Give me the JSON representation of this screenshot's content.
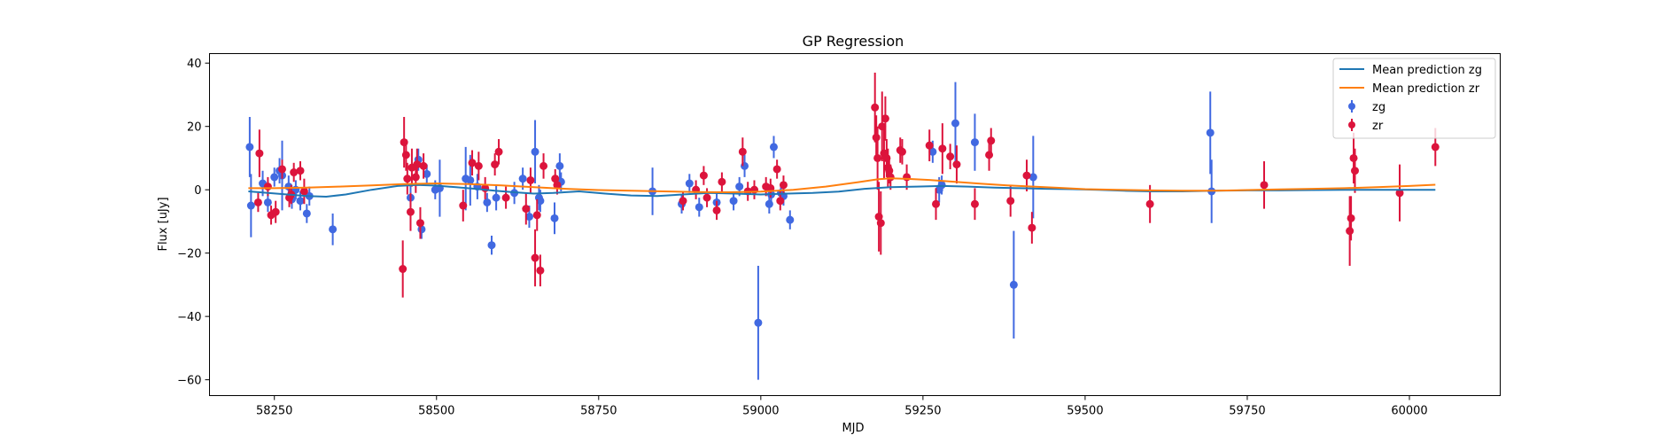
{
  "chart_data": {
    "type": "scatter",
    "title": "GP Regression",
    "xlabel": "MJD",
    "ylabel": "Flux [uJy]",
    "xlim": [
      58150,
      60140
    ],
    "ylim": [
      -65,
      43
    ],
    "xticks": [
      58250,
      58500,
      58750,
      59000,
      59250,
      59500,
      59750,
      60000
    ],
    "yticks": [
      -60,
      -40,
      -20,
      0,
      20,
      40
    ],
    "grid": false,
    "legend_position": "top-right",
    "colors": {
      "zg": "#4169e1",
      "zr": "#dc143c",
      "mean_zg": "#1f77b4",
      "mean_zr": "#ff7f0e"
    },
    "lines": [
      {
        "name": "Mean prediction zg",
        "color": "#1f77b4",
        "x": [
          58210,
          58240,
          58270,
          58300,
          58330,
          58360,
          58400,
          58440,
          58470,
          58500,
          58530,
          58560,
          58590,
          58620,
          58650,
          58680,
          58720,
          58760,
          58800,
          58840,
          58880,
          58920,
          58960,
          59000,
          59040,
          59080,
          59120,
          59160,
          59200,
          59240,
          59280,
          59320,
          59360,
          59400,
          59440,
          59480,
          59520,
          59560,
          59600,
          59650,
          59700,
          59750,
          59800,
          59850,
          59900,
          59950,
          60000,
          60040
        ],
        "y": [
          -0.5,
          -1.0,
          -1.5,
          -2.0,
          -2.2,
          -1.5,
          0.0,
          1.2,
          1.5,
          1.3,
          0.8,
          0.3,
          -0.3,
          -0.8,
          -1.2,
          -1.0,
          -0.5,
          -1.2,
          -1.8,
          -2.0,
          -1.5,
          -1.0,
          -1.2,
          -1.5,
          -1.2,
          -1.0,
          -0.6,
          0.3,
          0.8,
          1.0,
          1.2,
          1.0,
          0.7,
          0.5,
          0.3,
          0.2,
          0.0,
          -0.3,
          -0.5,
          -0.5,
          -0.3,
          -0.2,
          -0.2,
          -0.1,
          0.0,
          0.0,
          0.0,
          0.0
        ]
      },
      {
        "name": "Mean prediction zr",
        "color": "#ff7f0e",
        "x": [
          58210,
          58250,
          58300,
          58350,
          58400,
          58450,
          58500,
          58550,
          58600,
          58650,
          58700,
          58750,
          58800,
          58850,
          58900,
          58950,
          59000,
          59050,
          59100,
          59150,
          59180,
          59200,
          59230,
          59260,
          59300,
          59340,
          59380,
          59420,
          59460,
          59500,
          59550,
          59600,
          59650,
          59700,
          59750,
          59800,
          59850,
          59900,
          59950,
          60000,
          60040
        ],
        "y": [
          0.5,
          0.5,
          0.7,
          1.0,
          1.4,
          1.8,
          2.0,
          1.8,
          1.4,
          0.8,
          0.3,
          -0.1,
          -0.3,
          -0.5,
          -0.7,
          -0.8,
          -0.6,
          0.0,
          1.0,
          2.4,
          3.3,
          3.6,
          3.4,
          3.1,
          2.5,
          1.9,
          1.4,
          1.0,
          0.6,
          0.2,
          0.0,
          -0.2,
          -0.3,
          -0.3,
          -0.1,
          0.1,
          0.3,
          0.5,
          0.8,
          1.2,
          1.6
        ]
      }
    ],
    "series": [
      {
        "name": "zg",
        "color": "#4169e1",
        "x": [
          58212,
          58214,
          58232,
          58240,
          58250,
          58258,
          58262,
          58272,
          58277,
          58283,
          58290,
          58300,
          58304,
          58340,
          58460,
          58472,
          58477,
          58485,
          58498,
          58505,
          58545,
          58552,
          58563,
          58578,
          58585,
          58592,
          58620,
          58633,
          58643,
          58652,
          58658,
          58660,
          58682,
          58690,
          58692,
          58833,
          58878,
          58890,
          58905,
          58932,
          58958,
          58967,
          58975,
          58996,
          59013,
          59016,
          59020,
          59031,
          59035,
          59045,
          59265,
          59275,
          59279,
          59300,
          59330,
          59390,
          59420,
          59693,
          59695
        ],
        "y": [
          13.5,
          -5.0,
          2.0,
          -4.0,
          4.0,
          6.0,
          4.5,
          1.0,
          -3.0,
          0.0,
          -3.5,
          -7.5,
          -2.0,
          -12.5,
          -2.5,
          9.5,
          -12.5,
          5.0,
          0.0,
          0.5,
          3.5,
          3.0,
          1.0,
          -4.0,
          -17.5,
          -2.5,
          -1.0,
          3.5,
          -8.5,
          12.0,
          -2.5,
          -3.5,
          -9.0,
          7.5,
          2.5,
          -0.5,
          -4.5,
          2.0,
          -5.5,
          -4.0,
          -3.5,
          1.0,
          7.5,
          -42.0,
          -4.5,
          -1.5,
          13.5,
          -1.0,
          -2.0,
          -9.5,
          12.0,
          0.0,
          1.5,
          21.0,
          15.0,
          -30.0,
          4.0,
          18.0,
          -0.5
        ],
        "yerr": [
          9.5,
          10.0,
          4.0,
          3.0,
          3.0,
          4.0,
          11.0,
          3.5,
          3.0,
          3.0,
          3.0,
          3.0,
          3.0,
          5.0,
          4.0,
          3.5,
          3.0,
          3.0,
          3.0,
          9.0,
          10.0,
          8.0,
          4.0,
          3.0,
          3.0,
          4.0,
          3.5,
          3.5,
          3.5,
          10.0,
          4.0,
          3.5,
          5.0,
          4.0,
          3.0,
          7.5,
          3.0,
          3.0,
          3.0,
          3.0,
          3.0,
          3.0,
          3.5,
          18.0,
          3.0,
          3.0,
          3.5,
          3.0,
          3.0,
          3.0,
          3.5,
          4.0,
          3.0,
          13.0,
          9.0,
          17.0,
          13.0,
          13.0,
          10.0
        ]
      },
      {
        "name": "zr",
        "color": "#dc143c",
        "x": [
          58225,
          58227,
          58240,
          58245,
          58252,
          58262,
          58273,
          58276,
          58280,
          58290,
          58296,
          58448,
          58450,
          58453,
          58455,
          58460,
          58462,
          58468,
          58470,
          58475,
          58480,
          58541,
          58555,
          58565,
          58575,
          58590,
          58596,
          58607,
          58638,
          58645,
          58652,
          58655,
          58660,
          58665,
          58683,
          58686,
          58880,
          58900,
          58912,
          58917,
          58932,
          58940,
          58972,
          58980,
          58990,
          59008,
          59015,
          59025,
          59030,
          59035,
          59176,
          59178,
          59180,
          59182,
          59185,
          59187,
          59190,
          59192,
          59194,
          59196,
          59198,
          59200,
          59215,
          59218,
          59225,
          59260,
          59270,
          59280,
          59292,
          59302,
          59330,
          59352,
          59355,
          59385,
          59410,
          59418,
          59600,
          59776,
          59908,
          59910,
          59914,
          59916,
          59985,
          60040
        ],
        "y": [
          -4.0,
          11.5,
          1.0,
          -8.0,
          -7.0,
          6.5,
          -2.5,
          -1.5,
          5.5,
          6.0,
          -0.5,
          -25.0,
          15.0,
          11.0,
          3.5,
          -7.0,
          7.0,
          4.0,
          8.0,
          -10.5,
          7.5,
          -5.0,
          8.5,
          7.5,
          0.5,
          8.0,
          12.0,
          -2.5,
          -6.0,
          3.0,
          -21.5,
          -8.0,
          -25.5,
          7.5,
          3.5,
          1.5,
          -3.5,
          0.0,
          4.5,
          -2.5,
          -6.5,
          2.5,
          12.0,
          -0.5,
          0.0,
          1.0,
          0.5,
          6.5,
          -3.5,
          1.5,
          26.0,
          16.5,
          10.0,
          -8.5,
          -10.5,
          20.0,
          11.5,
          22.5,
          10.0,
          7.0,
          6.0,
          4.0,
          12.5,
          12.0,
          4.0,
          14.0,
          -4.5,
          13.0,
          10.5,
          8.0,
          -4.5,
          11.0,
          15.5,
          -3.5,
          4.5,
          -12.0,
          -4.5,
          1.5,
          -13.0,
          -9.0,
          10.0,
          6.0,
          -1.0,
          13.5
        ],
        "yerr": [
          3.0,
          7.5,
          3.0,
          3.0,
          3.5,
          3.0,
          3.0,
          3.0,
          3.0,
          3.0,
          4.0,
          9.0,
          8.0,
          5.0,
          5.0,
          6.0,
          6.0,
          5.0,
          5.0,
          5.0,
          4.0,
          5.0,
          4.0,
          4.5,
          3.5,
          3.5,
          4.0,
          3.5,
          5.0,
          4.0,
          9.0,
          5.0,
          5.0,
          4.0,
          3.0,
          3.0,
          3.0,
          3.0,
          3.0,
          3.0,
          3.0,
          3.0,
          4.5,
          3.0,
          3.0,
          3.0,
          3.0,
          3.0,
          3.0,
          3.0,
          11.0,
          7.0,
          10.0,
          11.0,
          10.0,
          11.0,
          8.0,
          7.0,
          6.0,
          6.0,
          4.0,
          4.0,
          4.0,
          4.0,
          4.0,
          5.0,
          5.0,
          8.0,
          4.0,
          6.0,
          5.0,
          5.0,
          4.0,
          5.0,
          5.0,
          5.0,
          6.0,
          7.5,
          11.0,
          7.0,
          8.0,
          7.0,
          9.0,
          6.0
        ]
      }
    ]
  }
}
